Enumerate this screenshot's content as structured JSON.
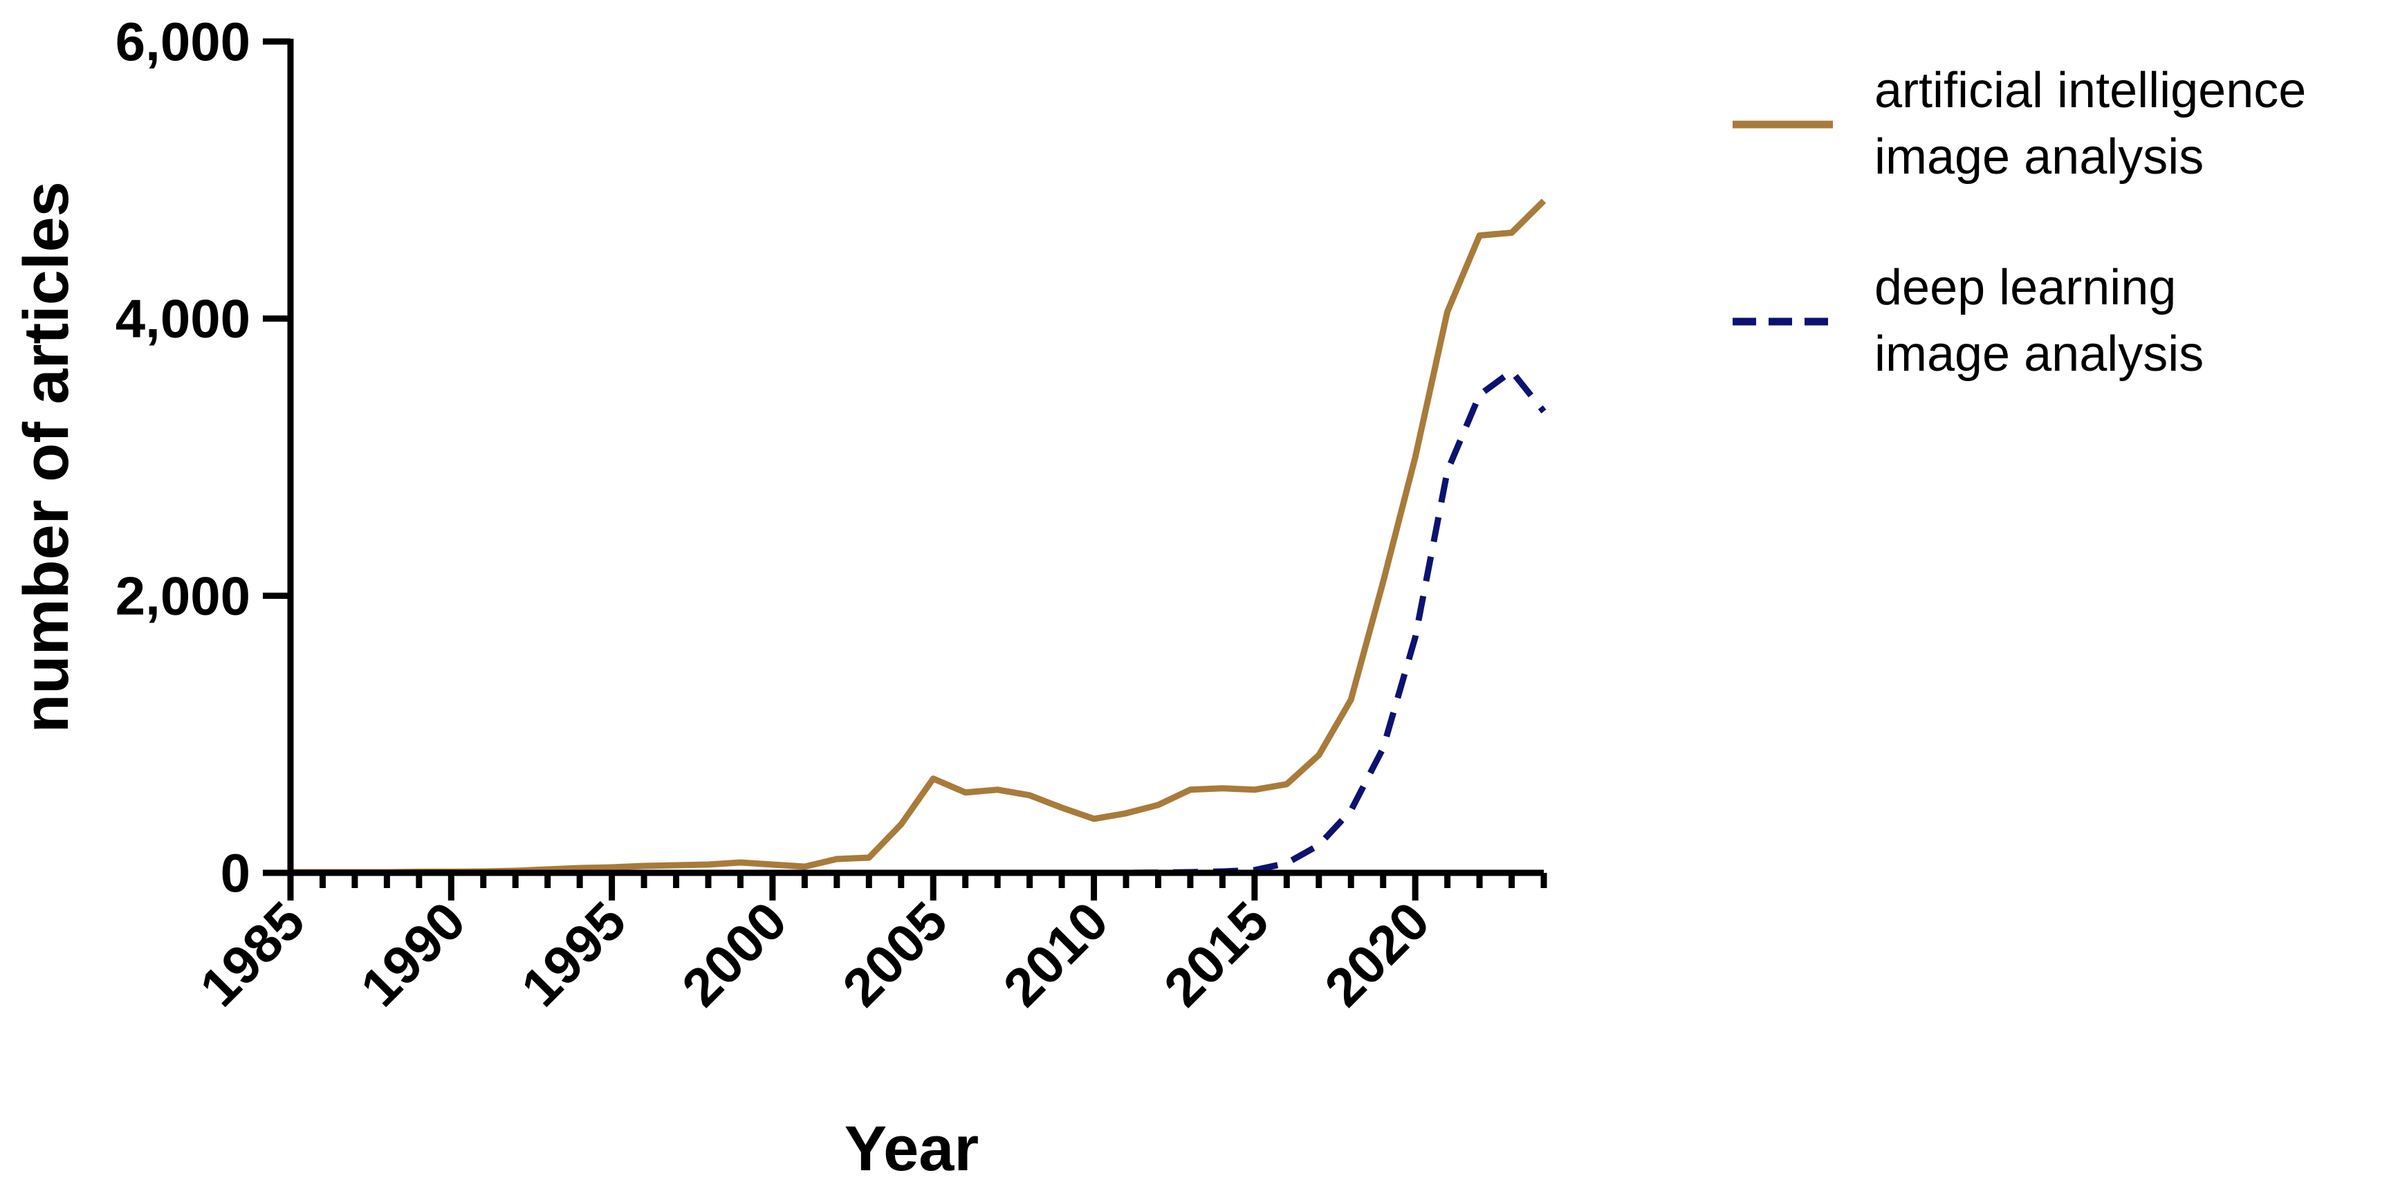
{
  "chart_data": {
    "type": "line",
    "xlabel": "Year",
    "ylabel": "number of articles",
    "xlim": [
      1985,
      2024
    ],
    "ylim": [
      0,
      6000
    ],
    "x_ticks": [
      1985,
      1990,
      1995,
      2000,
      2005,
      2010,
      2015,
      2020
    ],
    "y_ticks": [
      0,
      2000,
      4000,
      6000
    ],
    "x_tick_labels": [
      "1985",
      "1990",
      "1995",
      "2000",
      "2005",
      "2010",
      "2015",
      "2020"
    ],
    "y_tick_labels": [
      "0",
      "2,000",
      "4,000",
      "6,000"
    ],
    "grid": false,
    "legend_position": "right",
    "x": [
      1985,
      1986,
      1987,
      1988,
      1989,
      1990,
      1991,
      1992,
      1993,
      1994,
      1995,
      1996,
      1997,
      1998,
      1999,
      2000,
      2001,
      2002,
      2003,
      2004,
      2005,
      2006,
      2007,
      2008,
      2009,
      2010,
      2011,
      2012,
      2013,
      2014,
      2015,
      2016,
      2017,
      2018,
      2019,
      2020,
      2021,
      2022,
      2023,
      2024
    ],
    "series": [
      {
        "name_lines": [
          "artificial intelligence",
          "image analysis"
        ],
        "color": "#a87b3a",
        "line_style": "solid",
        "values": [
          5,
          5,
          5,
          5,
          8,
          8,
          10,
          15,
          25,
          35,
          40,
          50,
          55,
          60,
          75,
          60,
          45,
          100,
          110,
          350,
          680,
          580,
          600,
          560,
          470,
          390,
          430,
          490,
          600,
          610,
          600,
          640,
          850,
          1250,
          2100,
          3000,
          4050,
          4600,
          4620,
          4850
        ]
      },
      {
        "name_lines": [
          "deep learning",
          "image analysis"
        ],
        "color": "#0d1270",
        "line_style": "dashed",
        "values": [
          0,
          0,
          0,
          0,
          0,
          0,
          0,
          0,
          0,
          0,
          0,
          0,
          0,
          0,
          0,
          0,
          0,
          0,
          0,
          0,
          0,
          0,
          0,
          0,
          0,
          0,
          0,
          2,
          5,
          10,
          20,
          70,
          200,
          450,
          900,
          1700,
          2900,
          3450,
          3620,
          3330
        ]
      }
    ]
  }
}
